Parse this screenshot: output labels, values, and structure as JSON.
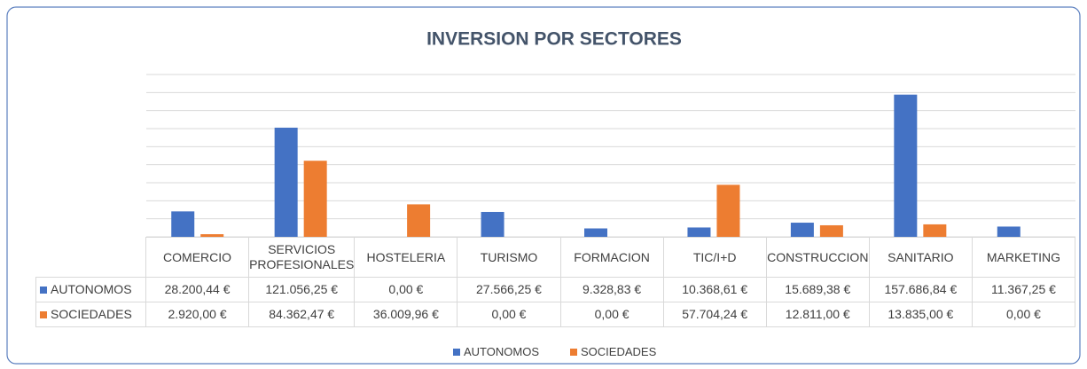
{
  "chart_data": {
    "type": "bar",
    "title": "INVERSION POR SECTORES",
    "categories": [
      "COMERCIO",
      "SERVICIOS PROFESIONALES",
      "HOSTELERIA",
      "TURISMO",
      "FORMACION",
      "TIC/I+D",
      "CONSTRUCCION",
      "SANITARIO",
      "MARKETING"
    ],
    "series": [
      {
        "name": "AUTONOMOS",
        "color": "#4472c4",
        "values": [
          28200.44,
          121056.25,
          0,
          27566.25,
          9328.83,
          10368.61,
          15689.38,
          157686.84,
          11367.25
        ],
        "value_labels": [
          "28.200,44 €",
          "121.056,25 €",
          "0,00 €",
          "27.566,25 €",
          "9.328,83 €",
          "10.368,61 €",
          "15.689,38 €",
          "157.686,84 €",
          "11.367,25 €"
        ]
      },
      {
        "name": "SOCIEDADES",
        "color": "#ed7d31",
        "values": [
          2920,
          84362.47,
          36009.96,
          0,
          0,
          57704.24,
          12811,
          13835,
          0
        ],
        "value_labels": [
          "2.920,00 €",
          "84.362,47 €",
          "36.009,96 €",
          "0,00 €",
          "0,00 €",
          "57.704,24 €",
          "12.811,00 €",
          "13.835,00 €",
          "0,00 €"
        ]
      }
    ],
    "ylim": [
      0,
      180000
    ],
    "yticks": [
      0,
      20000,
      40000,
      60000,
      80000,
      100000,
      120000,
      140000,
      160000,
      180000
    ],
    "grid": true
  }
}
